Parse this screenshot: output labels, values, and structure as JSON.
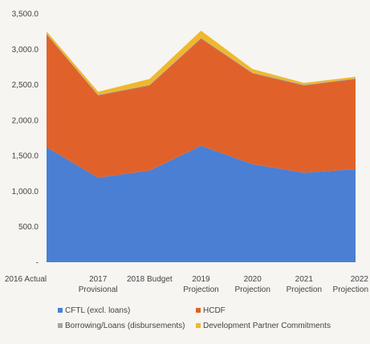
{
  "chart_data": {
    "type": "area",
    "stacked": true,
    "categories": [
      "2016 Actual",
      "2017 Provisional",
      "2018 Budget",
      "2019 Projection",
      "2020 Projection",
      "2021 Projection",
      "2022 Projection"
    ],
    "category_lines": [
      [
        "2016 Actual"
      ],
      [
        "2017",
        "Provisional"
      ],
      [
        "2018 Budget"
      ],
      [
        "2019",
        "Projection"
      ],
      [
        "2020",
        "Projection"
      ],
      [
        "2021",
        "Projection"
      ],
      [
        "2022",
        "Projection"
      ]
    ],
    "series": [
      {
        "name": "CFTL (excl. loans)",
        "color": "#4a7fd4",
        "values": [
          1620,
          1190,
          1290,
          1640,
          1380,
          1260,
          1310
        ]
      },
      {
        "name": "HCDF",
        "color": "#e0622a",
        "values": [
          1590,
          1160,
          1200,
          1510,
          1280,
          1230,
          1270
        ]
      },
      {
        "name": "Borrowing/Loans (disbursements)",
        "color": "#a5a5a5",
        "values": [
          10,
          10,
          10,
          10,
          10,
          10,
          10
        ]
      },
      {
        "name": "Development Partner Commitments",
        "color": "#f0b82a",
        "values": [
          30,
          40,
          80,
          100,
          50,
          25,
          20
        ]
      }
    ],
    "yticks": [
      "-",
      "500.0",
      "1,000.0",
      "1,500.0",
      "2,000.0",
      "2,500.0",
      "3,000.0",
      "3,500.0"
    ],
    "ylim": [
      0,
      3500
    ],
    "legend_position": "bottom",
    "grid": false
  }
}
